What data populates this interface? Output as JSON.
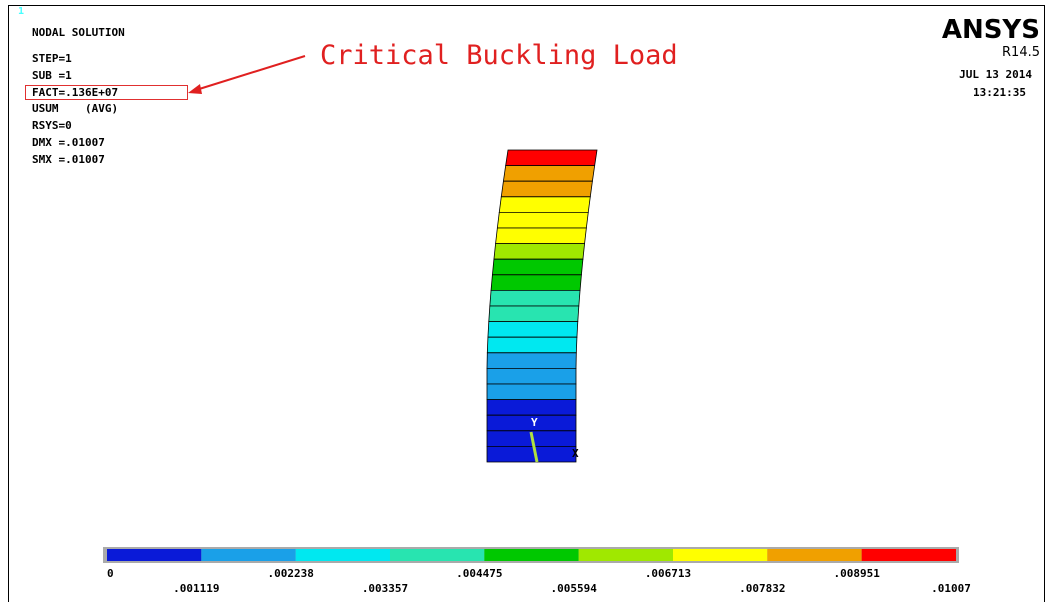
{
  "window_number": "1",
  "info": {
    "lines": [
      "NODAL SOLUTION",
      "STEP=1",
      "SUB =1",
      "FACT=.136E+07",
      "USUM    (AVG)",
      "RSYS=0",
      "DMX =.01007",
      "SMX =.01007"
    ]
  },
  "annotation": "Critical Buckling Load",
  "logo": {
    "name": "ANSYS",
    "release": "R14.5",
    "date": "JUL 13 2014",
    "time": "13:21:35"
  },
  "triad": {
    "y": "Y",
    "x": "X"
  },
  "legend": {
    "colors": [
      "#0a1ad8",
      "#1aa0e8",
      "#00e8f0",
      "#28e4b0",
      "#00c800",
      "#a0e800",
      "#ffff00",
      "#f0a000",
      "#ff0000"
    ],
    "labels": [
      "0",
      ".001119",
      ".002238",
      ".003357",
      ".004475",
      ".005594",
      ".006713",
      ".007832",
      ".008951",
      ".01007"
    ]
  }
}
